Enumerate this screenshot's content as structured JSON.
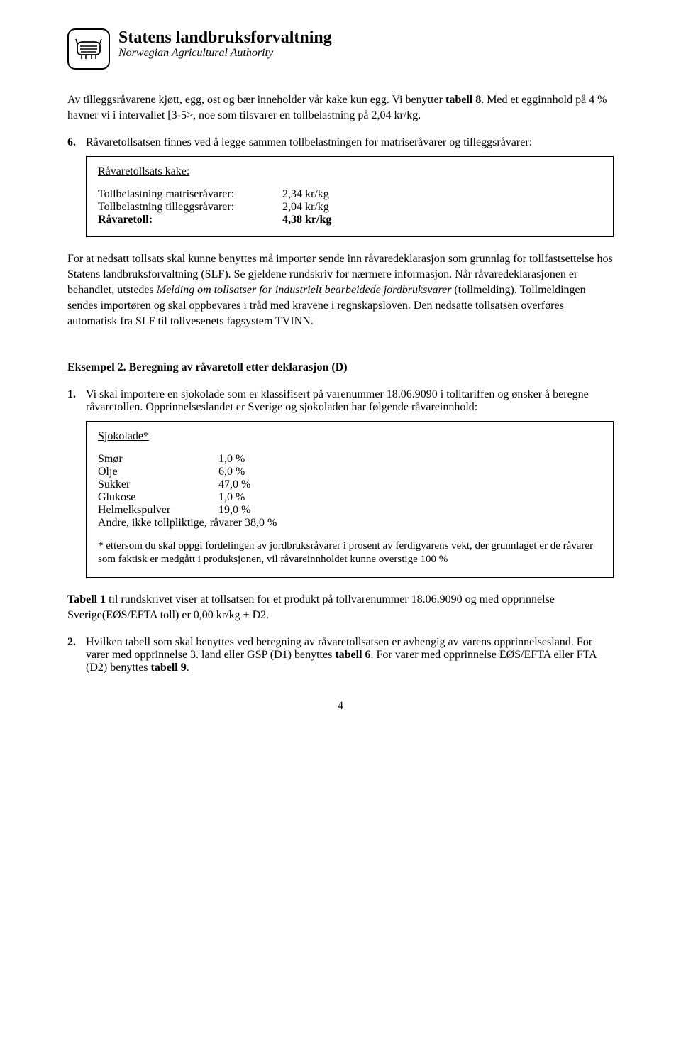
{
  "header": {
    "org_title": "Statens landbruksforvaltning",
    "org_subtitle": "Norwegian Agricultural Authority"
  },
  "intro": {
    "line1_pre": "Av tilleggsråvarene kjøtt, egg, ost og bær inneholder vår kake kun egg. Vi benytter ",
    "line1_bold": "tabell 8",
    "line1_post": ". Med et egginnhold på 4 % havner vi i intervallet [3-5>, noe som tilsvarer en tollbelastning på 2,04 kr/kg."
  },
  "item6": {
    "num": "6.",
    "text": "Råvaretollsatsen finnes ved å legge sammen tollbelastningen for matriseråvarer og tilleggsråvarer:"
  },
  "box1": {
    "title": "Råvaretollsats kake:",
    "rows": [
      {
        "label": "Tollbelastning matriseråvarer:",
        "value": "2,34 kr/kg"
      },
      {
        "label": "Tollbelastning tilleggsråvarer:",
        "value": "2,04 kr/kg"
      },
      {
        "label": "Råvaretoll:",
        "value": "4,38 kr/kg"
      }
    ]
  },
  "mainpara": "For at nedsatt tollsats skal kunne benyttes må importør sende inn råvaredeklarasjon som grunnlag for tollfastsettelse hos Statens landbruksforvaltning (SLF). Se gjeldene rundskriv for nærmere informasjon. Når råvaredeklarasjonen er behandlet, utstedes Melding om tollsatser for industrielt bearbeidede jordbruksvarer (tollmelding). Tollmeldingen sendes importøren og skal oppbevares i tråd med kravene i regnskapsloven. Den nedsatte tollsatsen overføres automatisk fra SLF til tollvesenets fagsystem TVINN.",
  "mainpara_italic_phrase": "Melding om tollsatser for industrielt bearbeidede jordbruksvarer",
  "example2": {
    "heading": "Eksempel 2. Beregning av råvaretoll etter deklarasjon (D)",
    "item1_num": "1.",
    "item1_text": "Vi skal importere en sjokolade som er klassifisert på varenummer 18.06.9090 i tolltariffen og ønsker å beregne råvaretollen. Opprinnelseslandet er Sverige og sjokoladen har følgende råvareinnhold:"
  },
  "box2": {
    "title": "Sjokolade*",
    "ingredients": [
      {
        "label": "Smør",
        "value": "1,0 %"
      },
      {
        "label": "Olje",
        "value": "6,0 %"
      },
      {
        "label": "Sukker",
        "value": "47,0 %"
      },
      {
        "label": "Glukose",
        "value": "1,0 %"
      },
      {
        "label": "Helmelkspulver",
        "value": "19,0 %"
      }
    ],
    "extra_line": "Andre, ikke tollpliktige, råvarer 38,0 %",
    "footnote": "* ettersom du skal oppgi fordelingen av jordbruksråvarer i prosent av ferdigvarens vekt, der grunnlaget er de råvarer som faktisk er medgått i produksjonen, vil råvareinnholdet kunne overstige 100 %"
  },
  "tabell1_para_pre": "Tabell 1",
  "tabell1_para_post": " til rundskrivet viser at tollsatsen for et produkt på tollvarenummer 18.06.9090 og med opprinnelse Sverige(EØS/EFTA toll) er 0,00 kr/kg + D2.",
  "item2_ex2": {
    "num": "2.",
    "pre": "Hvilken tabell som skal benyttes ved beregning av råvaretollsatsen er avhengig av varens opprinnelsesland. For varer med opprinnelse 3. land eller GSP (D1) benyttes ",
    "bold1": "tabell 6",
    "mid": ". For varer med opprinnelse EØS/EFTA eller FTA (D2) benyttes ",
    "bold2": "tabell 9",
    "post": "."
  },
  "page_number": "4"
}
